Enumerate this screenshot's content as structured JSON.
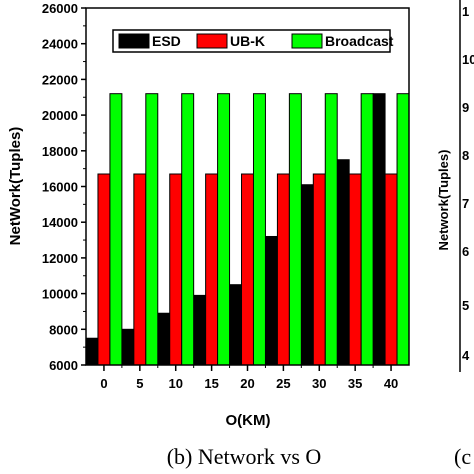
{
  "caption": "(b)  Network vs O",
  "neighbor_fragment": {
    "caption_start": "(c",
    "ylabel": "Network(Tuples)",
    "tick_fragments": [
      "1",
      "10",
      "9",
      "8",
      "7",
      "6",
      "5",
      "4"
    ]
  },
  "chart_data": {
    "type": "bar",
    "xlabel": "O(KM)",
    "ylabel": "NetWork(Tuples)",
    "ylim": [
      6000,
      26000
    ],
    "y_ticks": [
      6000,
      8000,
      10000,
      12000,
      14000,
      16000,
      18000,
      20000,
      22000,
      24000,
      26000
    ],
    "categories": [
      "0",
      "5",
      "10",
      "15",
      "20",
      "25",
      "30",
      "35",
      "40"
    ],
    "x_tick_labels": [
      "0",
      "5",
      "10",
      "15",
      "20",
      "25",
      "30",
      "35",
      "40"
    ],
    "legend_position": "top-right",
    "series": [
      {
        "name": "ESD",
        "color": "#000000",
        "values": [
          7500,
          8000,
          8900,
          9900,
          10500,
          13200,
          16100,
          17500,
          21200
        ]
      },
      {
        "name": "UB-K",
        "color": "#ff0000",
        "values": [
          16700,
          16700,
          16700,
          16700,
          16700,
          16700,
          16700,
          16700,
          16700
        ]
      },
      {
        "name": "Broadcast",
        "color": "#00ff00",
        "values": [
          21200,
          21200,
          21200,
          21200,
          21200,
          21200,
          21200,
          21200,
          21200
        ]
      }
    ]
  }
}
